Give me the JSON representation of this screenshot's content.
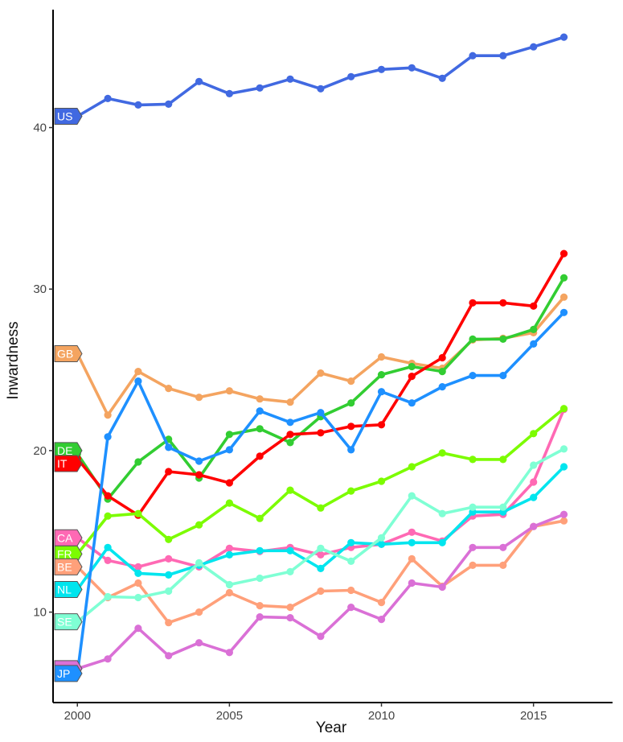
{
  "chart_data": {
    "type": "line",
    "xlabel": "Year",
    "ylabel": "Inwardness",
    "xlim": [
      1999.2,
      2017.6
    ],
    "ylim": [
      4.4,
      47.3
    ],
    "xticks": [
      2000,
      2005,
      2010,
      2015
    ],
    "yticks": [
      10,
      20,
      30,
      40
    ],
    "grid": false,
    "x": [
      2000,
      2001,
      2002,
      2003,
      2004,
      2005,
      2006,
      2007,
      2008,
      2009,
      2010,
      2011,
      2012,
      2013,
      2014,
      2015,
      2016
    ],
    "series": [
      {
        "name": "US",
        "color": "#4169e1",
        "values": [
          40.7,
          41.8,
          41.4,
          41.45,
          42.85,
          42.1,
          42.45,
          43.0,
          42.4,
          43.15,
          43.6,
          43.7,
          43.05,
          44.45,
          44.45,
          45.0,
          45.6
        ]
      },
      {
        "name": "GB",
        "color": "#f4a460",
        "values": [
          26.0,
          22.2,
          24.9,
          23.85,
          23.3,
          23.7,
          23.2,
          23.0,
          24.8,
          24.3,
          25.8,
          25.4,
          25.1,
          26.85,
          26.95,
          27.3,
          29.5
        ]
      },
      {
        "name": "DE",
        "color": "#32cd32",
        "values": [
          19.8,
          17.0,
          19.3,
          20.7,
          18.3,
          21.0,
          21.35,
          20.5,
          22.1,
          22.95,
          24.7,
          25.2,
          24.9,
          26.9,
          26.9,
          27.5,
          30.7
        ]
      },
      {
        "name": "IT",
        "color": "#ff0000",
        "values": [
          19.5,
          17.2,
          16.0,
          18.7,
          18.5,
          18.0,
          19.65,
          21.0,
          21.1,
          21.5,
          21.6,
          24.6,
          25.75,
          29.15,
          29.15,
          28.95,
          32.2
        ]
      },
      {
        "name": "CA",
        "color": "#ff69b4",
        "values": [
          14.6,
          13.2,
          12.8,
          13.3,
          12.8,
          13.95,
          13.75,
          14.0,
          13.55,
          14.0,
          14.2,
          14.95,
          14.4,
          15.95,
          16.05,
          18.05,
          22.55
        ]
      },
      {
        "name": "FR",
        "color": "#7cfc00",
        "values": [
          13.6,
          15.95,
          16.1,
          14.5,
          15.4,
          16.75,
          15.8,
          17.55,
          16.45,
          17.5,
          18.1,
          19.0,
          19.85,
          19.45,
          19.45,
          21.05,
          22.6
        ]
      },
      {
        "name": "BE",
        "color": "#ffa07a",
        "values": [
          12.8,
          10.9,
          11.8,
          9.35,
          10.0,
          11.2,
          10.4,
          10.3,
          11.3,
          11.35,
          10.6,
          13.3,
          11.6,
          12.9,
          12.9,
          15.3,
          15.65
        ]
      },
      {
        "name": "NL",
        "color": "#00e5ee",
        "values": [
          11.4,
          14.0,
          12.4,
          12.3,
          12.9,
          13.55,
          13.8,
          13.8,
          12.7,
          14.3,
          14.2,
          14.3,
          14.3,
          16.2,
          16.2,
          17.1,
          19.0
        ]
      },
      {
        "name": "SE",
        "color": "#7fffd4",
        "values": [
          9.4,
          10.95,
          10.9,
          11.3,
          13.05,
          11.7,
          12.1,
          12.5,
          13.95,
          13.15,
          14.6,
          17.2,
          16.1,
          16.5,
          16.5,
          19.1,
          20.1
        ]
      },
      {
        "name": "CH",
        "color": "#da70d6",
        "values": [
          6.5,
          7.1,
          9.0,
          7.3,
          8.1,
          7.5,
          9.7,
          9.65,
          8.5,
          10.3,
          9.55,
          11.8,
          11.55,
          14.0,
          14.0,
          15.3,
          16.05
        ]
      },
      {
        "name": "JP",
        "color": "#1e90ff",
        "values": [
          6.2,
          20.85,
          24.3,
          20.2,
          19.35,
          20.05,
          22.45,
          21.75,
          22.35,
          20.05,
          23.65,
          22.95,
          23.95,
          24.65,
          24.65,
          26.6,
          28.55
        ]
      }
    ]
  }
}
